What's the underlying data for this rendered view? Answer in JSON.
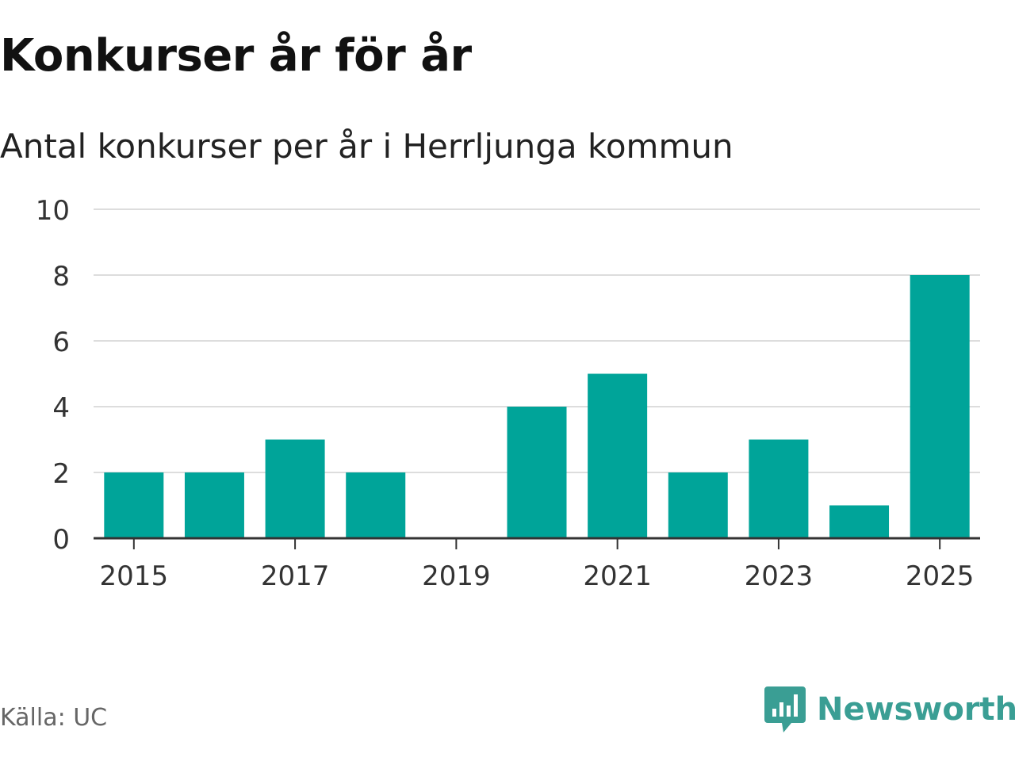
{
  "title": "Konkurser år för år",
  "subtitle": "Antal konkurser per år i Herrljunga kommun",
  "source": "Källa: UC",
  "brand": {
    "name": "Newsworthy",
    "icon": "newsworthy-logo-icon",
    "color": "#3a9e94"
  },
  "colors": {
    "bar": "#00a499",
    "grid": "#dddddd",
    "axis": "#333333"
  },
  "chart_data": {
    "type": "bar",
    "categories": [
      "2015",
      "2016",
      "2017",
      "2018",
      "2019",
      "2020",
      "2021",
      "2022",
      "2023",
      "2024",
      "2025"
    ],
    "values": [
      2,
      2,
      3,
      2,
      0,
      4,
      5,
      2,
      3,
      1,
      8
    ],
    "x_tick_labels": [
      "2015",
      "2017",
      "2019",
      "2021",
      "2023",
      "2025"
    ],
    "y_ticks": [
      0,
      2,
      4,
      6,
      8,
      10
    ],
    "ylim": [
      0,
      10
    ],
    "grid": true,
    "legend": false
  }
}
